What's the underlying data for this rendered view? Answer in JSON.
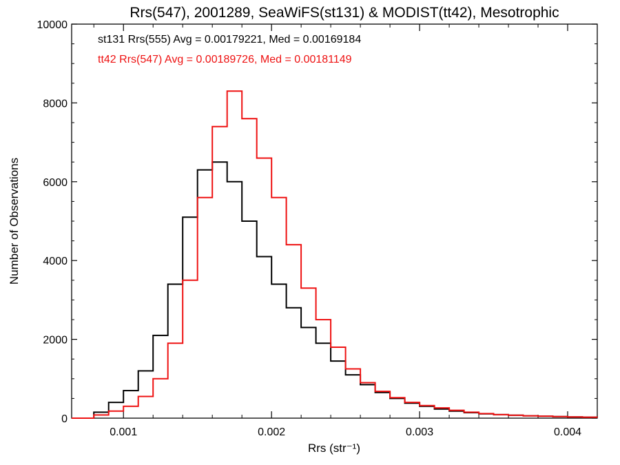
{
  "chart_data": {
    "type": "line",
    "title": "Rrs(547), 2001289, SeaWiFS(st131) & MODIST(tt42), Mesotrophic",
    "xlabel": "Rrs (str⁻¹)",
    "ylabel": "Number of Observations",
    "xlim": [
      0.00065,
      0.0042
    ],
    "ylim": [
      0,
      10000
    ],
    "x_ticks": [
      0.001,
      0.002,
      0.003,
      0.004
    ],
    "x_tick_labels": [
      "0.001",
      "0.002",
      "0.003",
      "0.004"
    ],
    "y_ticks": [
      0,
      2000,
      4000,
      6000,
      8000,
      10000
    ],
    "y_tick_labels": [
      "0",
      "2000",
      "4000",
      "6000",
      "8000",
      "10000"
    ],
    "grid": false,
    "annotations": [
      {
        "text": "st131 Rrs(555) Avg = 0.00179221, Med = 0.00169184",
        "color": "#000000"
      },
      {
        "text": "tt42 Rrs(547) Avg = 0.00189726, Med = 0.00181149",
        "color": "#ee1111"
      }
    ],
    "series": [
      {
        "color": "#000000",
        "x": [
          0.00065,
          0.00075,
          0.0008,
          0.0009,
          0.001,
          0.0011,
          0.0012,
          0.0013,
          0.0014,
          0.0015,
          0.0016,
          0.0017,
          0.0018,
          0.0019,
          0.002,
          0.0021,
          0.0022,
          0.0023,
          0.0024,
          0.0025,
          0.0026,
          0.0027,
          0.0028,
          0.0029,
          0.003,
          0.0031,
          0.0032,
          0.0033,
          0.0034,
          0.0035,
          0.0036,
          0.0037,
          0.0038,
          0.0039,
          0.004,
          0.0041,
          0.0042
        ],
        "y": [
          0,
          0,
          150,
          400,
          700,
          1200,
          2100,
          3400,
          5100,
          6300,
          6500,
          6000,
          5000,
          4100,
          3400,
          2800,
          2300,
          1900,
          1450,
          1100,
          850,
          650,
          500,
          380,
          300,
          230,
          180,
          140,
          110,
          90,
          75,
          60,
          50,
          40,
          30,
          25,
          20
        ]
      },
      {
        "color": "#ee1111",
        "x": [
          0.00065,
          0.00075,
          0.0008,
          0.0009,
          0.001,
          0.0011,
          0.0012,
          0.0013,
          0.0014,
          0.0015,
          0.0016,
          0.0017,
          0.0018,
          0.0019,
          0.002,
          0.0021,
          0.0022,
          0.0023,
          0.0024,
          0.0025,
          0.0026,
          0.0027,
          0.0028,
          0.0029,
          0.003,
          0.0031,
          0.0032,
          0.0033,
          0.0034,
          0.0035,
          0.0036,
          0.0037,
          0.0038,
          0.0039,
          0.004,
          0.0041,
          0.0042
        ],
        "y": [
          0,
          0,
          80,
          180,
          300,
          550,
          1000,
          1900,
          3500,
          5600,
          7400,
          8300,
          7600,
          6600,
          5600,
          4400,
          3300,
          2500,
          1800,
          1250,
          900,
          680,
          520,
          400,
          320,
          260,
          200,
          150,
          115,
          90,
          75,
          60,
          50,
          40,
          30,
          25,
          20
        ]
      }
    ]
  }
}
